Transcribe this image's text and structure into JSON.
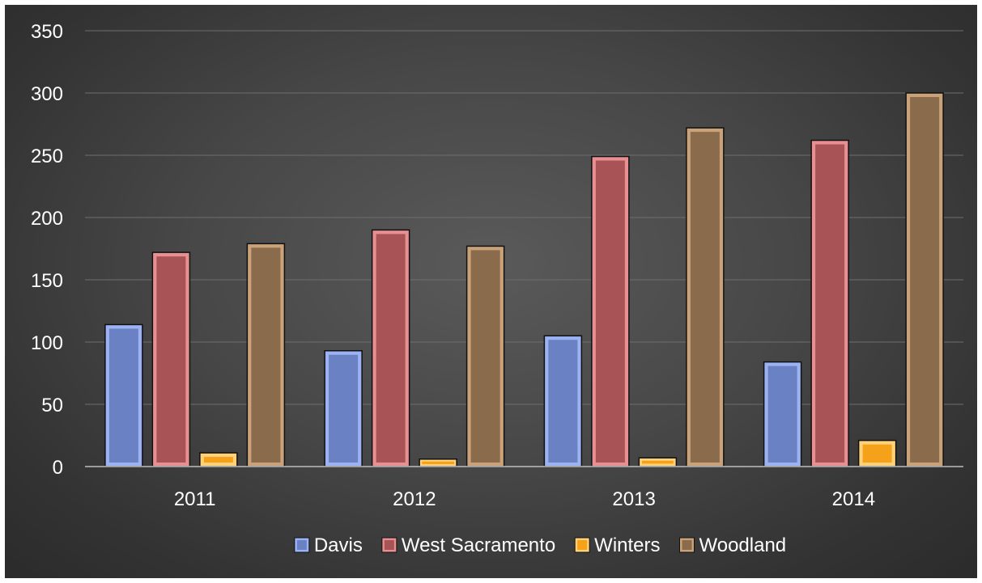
{
  "chart_data": {
    "type": "bar",
    "title": "",
    "xlabel": "",
    "ylabel": "",
    "categories": [
      "2011",
      "2012",
      "2013",
      "2014"
    ],
    "ylim": [
      0,
      350
    ],
    "yticks": [
      0,
      50,
      100,
      150,
      200,
      250,
      300,
      350
    ],
    "grid": true,
    "legend_position": "bottom",
    "series": [
      {
        "name": "Davis",
        "values": [
          114,
          93,
          105,
          84
        ],
        "color": "#6a82c4",
        "edge": "#9bb3f2"
      },
      {
        "name": "West Sacramento",
        "values": [
          172,
          190,
          249,
          262
        ],
        "color": "#a85457",
        "edge": "#e88f92"
      },
      {
        "name": "Winters",
        "values": [
          11,
          6,
          7,
          21
        ],
        "color": "#f5a11a",
        "edge": "#ffd27a"
      },
      {
        "name": "Woodland",
        "values": [
          179,
          177,
          272,
          300
        ],
        "color": "#8a6b4b",
        "edge": "#caa27a"
      }
    ]
  }
}
